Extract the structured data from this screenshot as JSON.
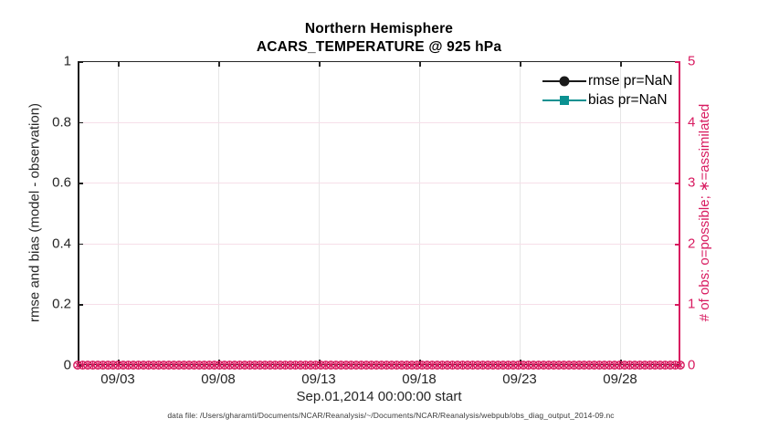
{
  "figure": {
    "title_line1": "Northern Hemisphere",
    "title_line2": "ACARS_TEMPERATURE @ 925 hPa",
    "xlabel": "Sep.01,2014 00:00:00 start",
    "footer": "data file: /Users/gharamti/Documents/NCAR/Reanalysis/~/Documents/NCAR/Reanalysis/webpub/obs_diag_output_2014-09.nc"
  },
  "colors": {
    "rmse_black": "#1a1a1a",
    "bias_teal": "#0b9191",
    "obs_pink": "#d81b60",
    "grid_vertical": "#e6e6e6",
    "grid_horizontal": "#f6dfe9",
    "axis_text": "#262626"
  },
  "legend": {
    "items": [
      {
        "label": "rmse pr=NaN",
        "marker": "circle",
        "color": "#1a1a1a"
      },
      {
        "label": "bias pr=NaN",
        "marker": "square",
        "color": "#0b9191"
      }
    ]
  },
  "left_axis": {
    "label": "rmse and bias (model - observation)",
    "ticks": [
      0,
      0.2,
      0.4,
      0.6,
      0.8,
      1
    ],
    "tick_labels": [
      "0",
      "0.2",
      "0.4",
      "0.6",
      "0.8",
      "1"
    ],
    "range": [
      0,
      1
    ],
    "color": "#262626"
  },
  "right_axis": {
    "label": "# of obs: o=possible; ∗=assimilated",
    "ticks": [
      0,
      1,
      2,
      3,
      4,
      5
    ],
    "tick_labels": [
      "0",
      "1",
      "2",
      "3",
      "4",
      "5"
    ],
    "range": [
      0,
      5
    ],
    "color": "#d81b60"
  },
  "x_axis": {
    "ticks": [
      {
        "label": "09/03",
        "day_offset": 2
      },
      {
        "label": "09/08",
        "day_offset": 7
      },
      {
        "label": "09/13",
        "day_offset": 12
      },
      {
        "label": "09/18",
        "day_offset": 17
      },
      {
        "label": "09/23",
        "day_offset": 22
      },
      {
        "label": "09/28",
        "day_offset": 27
      }
    ],
    "range_days": [
      0,
      30
    ]
  },
  "chart_data": {
    "type": "line",
    "title": "Northern Hemisphere — ACARS_TEMPERATURE @ 925 hPa",
    "x_start": "Sep.01,2014 00:00:00",
    "x_interval_hours": 6,
    "n_times": 120,
    "xlabel": "Sep.01,2014 00:00:00 start",
    "left_ylabel": "rmse and bias (model - observation)",
    "right_ylabel": "# of obs: o=possible; ∗=assimilated",
    "left_ylim": [
      0,
      1
    ],
    "right_ylim": [
      0,
      5
    ],
    "grid": "faint",
    "legend_position": "top-right-inside",
    "series": [
      {
        "name": "rmse pr=NaN",
        "axis": "left",
        "marker": "o",
        "color": "#1a1a1a",
        "values": "NaN (no curve drawn)"
      },
      {
        "name": "bias pr=NaN",
        "axis": "left",
        "marker": "s",
        "color": "#0b9191",
        "values": "NaN (no curve drawn)"
      },
      {
        "name": "# of obs possible (o markers)",
        "axis": "right",
        "marker": "o",
        "color": "#d81b60",
        "constant_value": 0
      },
      {
        "name": "# of obs assimilated (∗ markers)",
        "axis": "right",
        "marker": "*",
        "color": "#d81b60",
        "constant_value": 0
      }
    ]
  }
}
